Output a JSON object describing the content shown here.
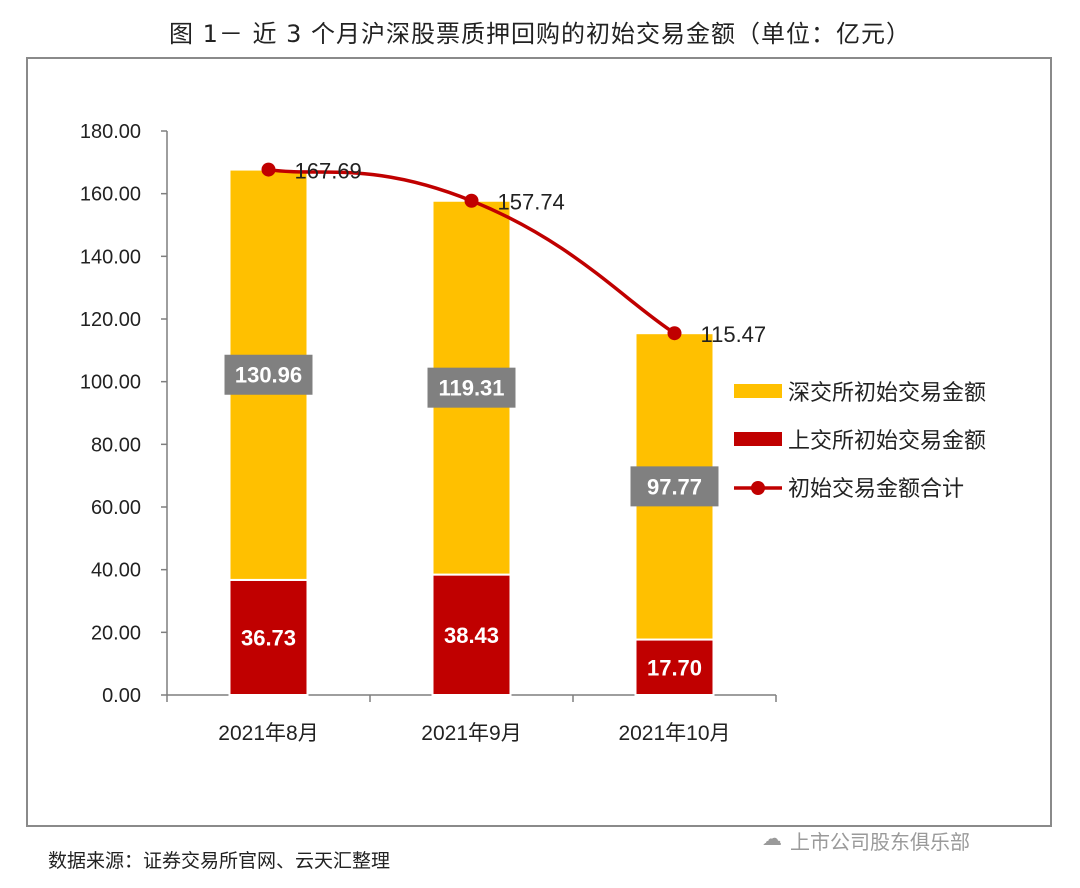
{
  "title": "图 1－ 近 3 个月沪深股票质押回购的初始交易金额（单位：亿元）",
  "source": "数据来源：证券交易所官网、云天汇整理",
  "watermark": "上市公司股东俱乐部",
  "colors": {
    "szse": "#FFC000",
    "sse": "#C00000",
    "total": "#C00000",
    "label_box": "#808080"
  },
  "chart_data": {
    "type": "bar",
    "stacked": true,
    "categories": [
      "2021年8月",
      "2021年9月",
      "2021年10月"
    ],
    "series": [
      {
        "name": "上交所初始交易金额",
        "values": [
          36.73,
          38.43,
          17.7
        ],
        "labels": [
          "36.73",
          "38.43",
          "17.70"
        ]
      },
      {
        "name": "深交所初始交易金额",
        "values": [
          130.96,
          119.31,
          97.77
        ],
        "labels": [
          "130.96",
          "119.31",
          "97.77"
        ]
      }
    ],
    "line": {
      "name": "初始交易金额合计",
      "values": [
        167.69,
        157.74,
        115.47
      ],
      "labels": [
        "167.69",
        "157.74",
        "115.47"
      ]
    },
    "ylim": [
      0,
      180
    ],
    "yticks": [
      "0.00",
      "20.00",
      "40.00",
      "60.00",
      "80.00",
      "100.00",
      "120.00",
      "140.00",
      "160.00",
      "180.00"
    ],
    "legend": [
      "深交所初始交易金额",
      "上交所初始交易金额",
      "初始交易金额合计"
    ],
    "legend_position": "right"
  }
}
